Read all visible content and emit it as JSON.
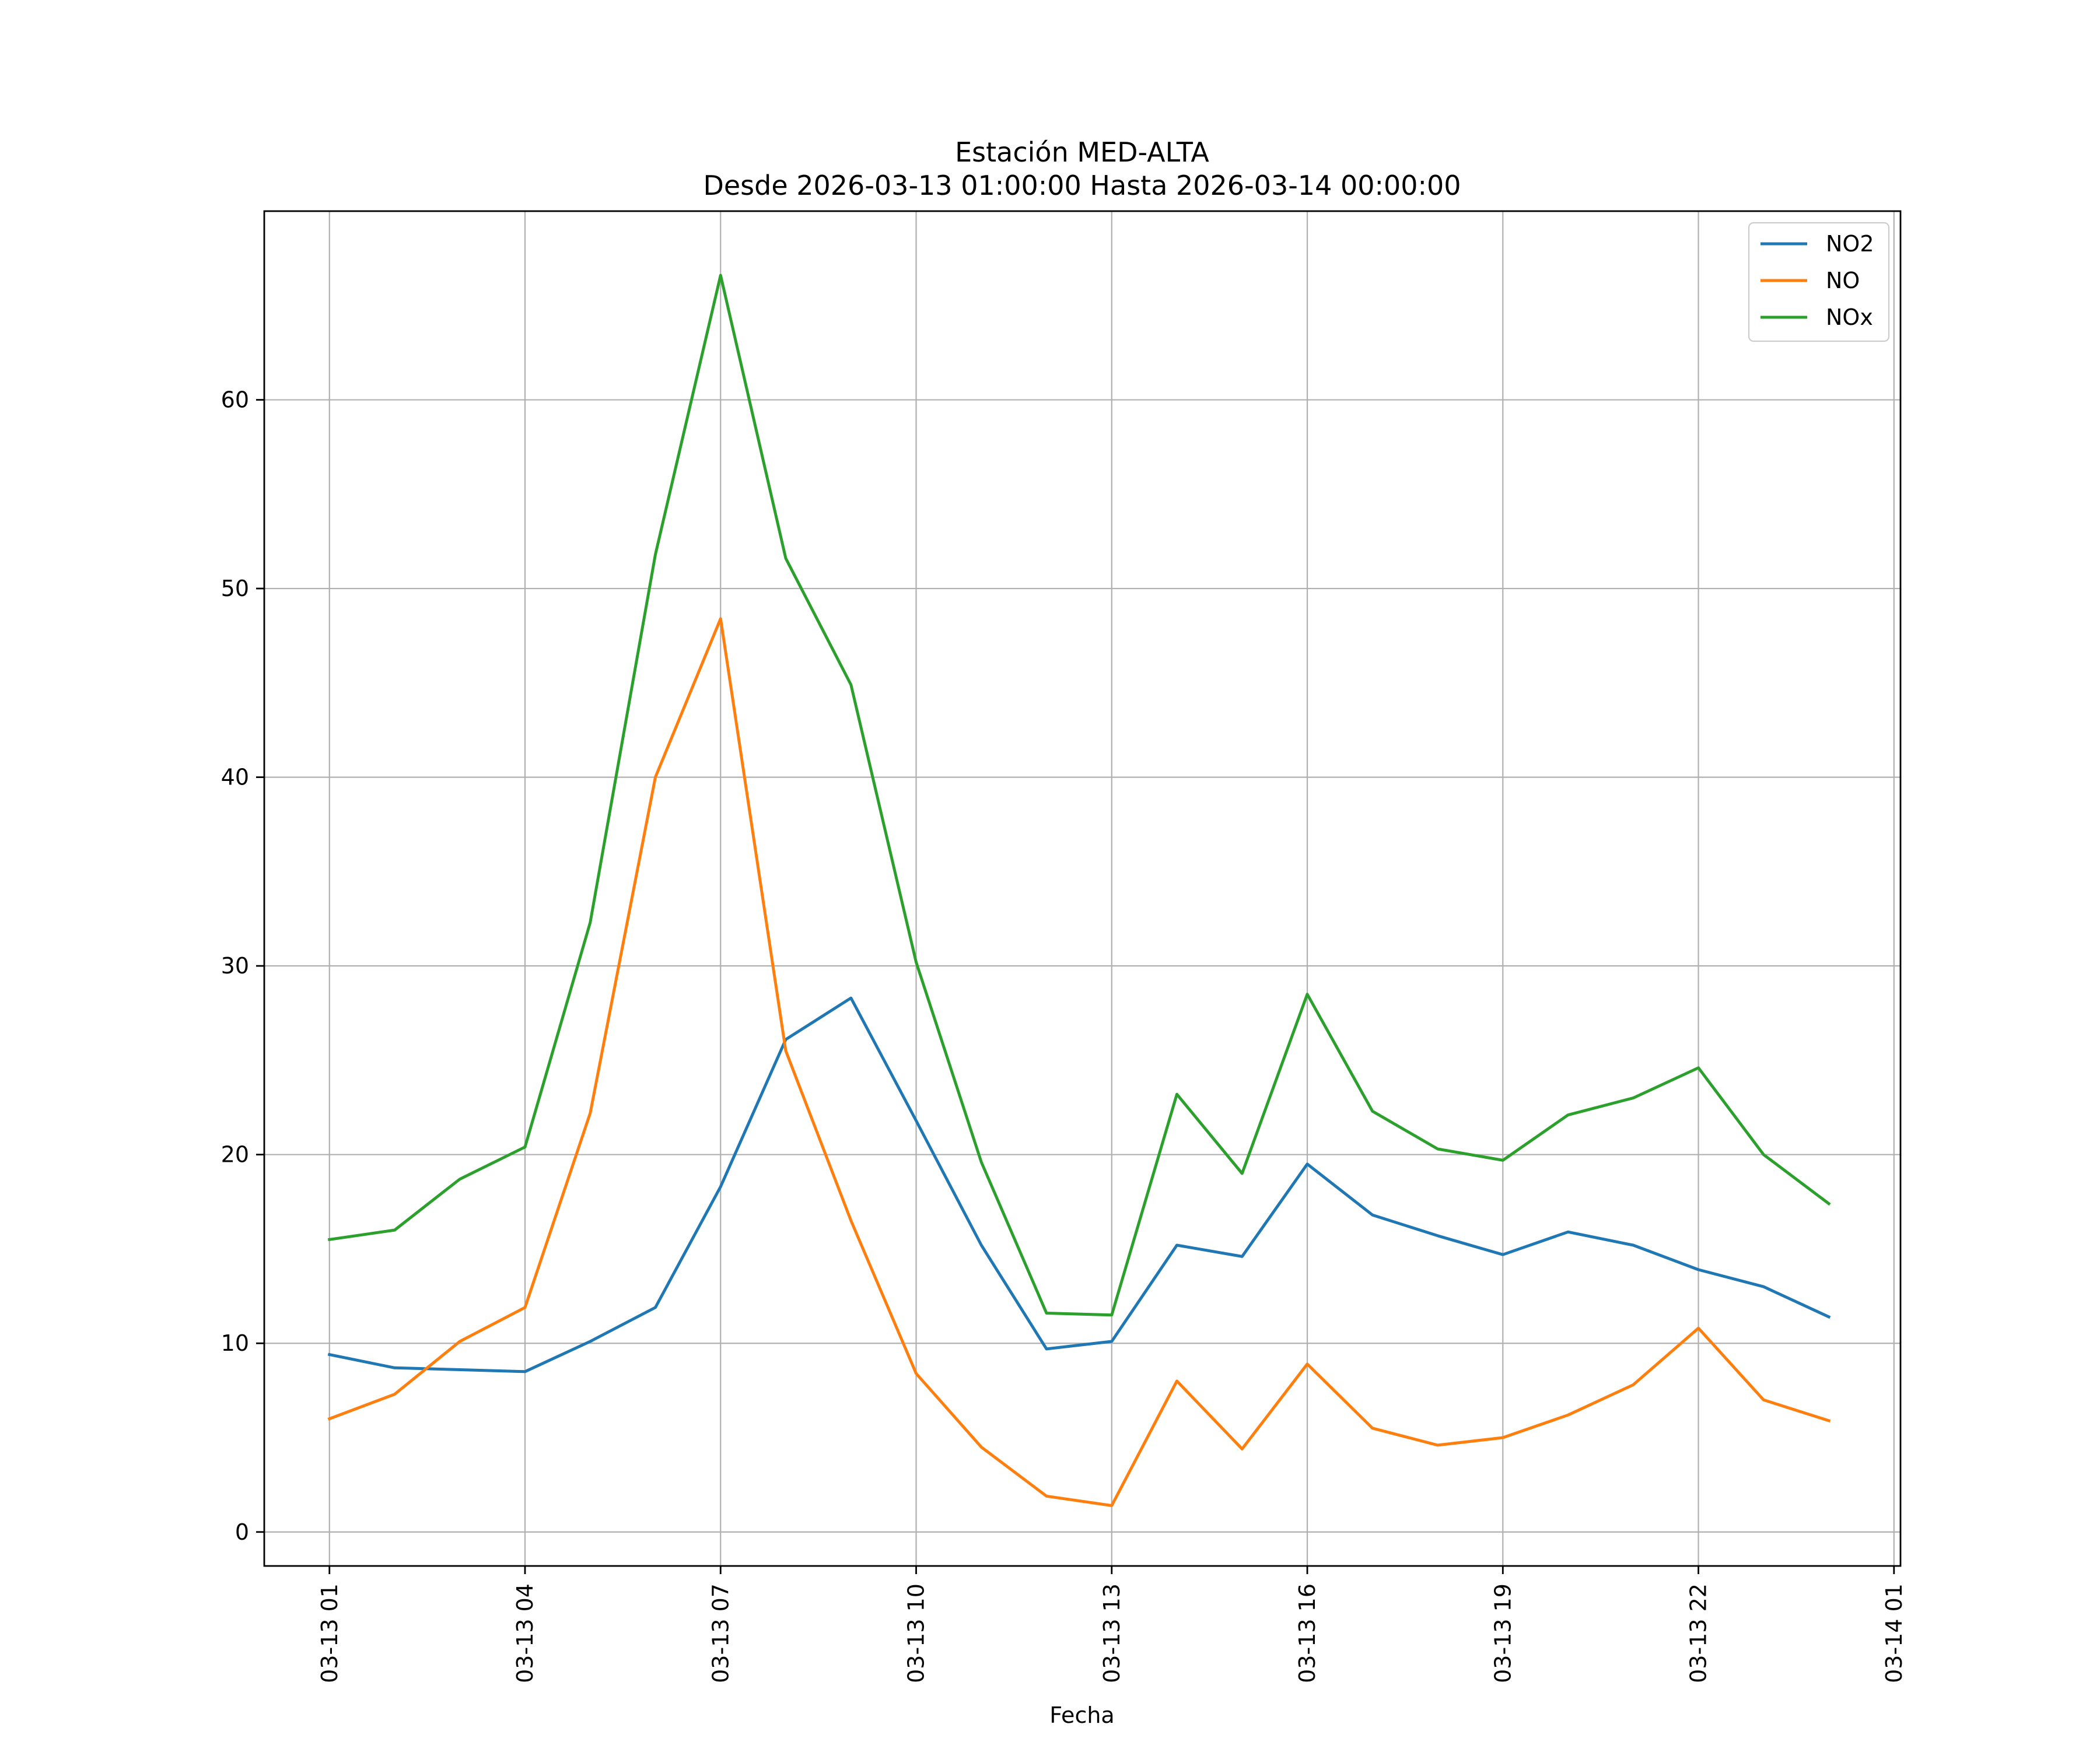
{
  "chart_data": {
    "type": "line",
    "title": "Estación MED-ALTA",
    "subtitle": "Desde 2026-03-13 01:00:00 Hasta 2026-03-14 00:00:00",
    "xlabel": "Fecha",
    "ylabel": "",
    "x": [
      "2026-03-13 01:00",
      "2026-03-13 02:00",
      "2026-03-13 03:00",
      "2026-03-13 04:00",
      "2026-03-13 05:00",
      "2026-03-13 06:00",
      "2026-03-13 07:00",
      "2026-03-13 08:00",
      "2026-03-13 09:00",
      "2026-03-13 10:00",
      "2026-03-13 11:00",
      "2026-03-13 12:00",
      "2026-03-13 13:00",
      "2026-03-13 14:00",
      "2026-03-13 15:00",
      "2026-03-13 16:00",
      "2026-03-13 17:00",
      "2026-03-13 18:00",
      "2026-03-13 19:00",
      "2026-03-13 20:00",
      "2026-03-13 21:00",
      "2026-03-13 22:00",
      "2026-03-13 23:00",
      "2026-03-14 00:00"
    ],
    "xlim": [
      "2026-03-13 00:00",
      "2026-03-14 01:06"
    ],
    "xticks": [
      {
        "value": "2026-03-13 01:00",
        "label": "03-13 01"
      },
      {
        "value": "2026-03-13 04:00",
        "label": "03-13 04"
      },
      {
        "value": "2026-03-13 07:00",
        "label": "03-13 07"
      },
      {
        "value": "2026-03-13 10:00",
        "label": "03-13 10"
      },
      {
        "value": "2026-03-13 13:00",
        "label": "03-13 13"
      },
      {
        "value": "2026-03-13 16:00",
        "label": "03-13 16"
      },
      {
        "value": "2026-03-13 19:00",
        "label": "03-13 19"
      },
      {
        "value": "2026-03-13 22:00",
        "label": "03-13 22"
      },
      {
        "value": "2026-03-14 01:00",
        "label": "03-14 01"
      }
    ],
    "ylim": [
      -1.8,
      70
    ],
    "yticks": [
      0,
      10,
      20,
      30,
      40,
      50,
      60
    ],
    "grid": true,
    "legend": "top-right",
    "series": [
      {
        "name": "NO2",
        "color": "#1f77b4",
        "values": [
          9.4,
          8.7,
          8.6,
          8.5,
          10.1,
          11.9,
          18.3,
          26.1,
          28.3,
          21.8,
          15.2,
          9.7,
          10.1,
          15.2,
          14.6,
          19.5,
          16.8,
          15.7,
          14.7,
          15.9,
          15.2,
          13.9,
          13.0,
          11.4
        ]
      },
      {
        "name": "NO",
        "color": "#ff7f0e",
        "values": [
          6.0,
          7.3,
          10.1,
          11.9,
          22.2,
          40.0,
          48.4,
          25.5,
          16.5,
          8.4,
          4.5,
          1.9,
          1.4,
          8.0,
          4.4,
          8.9,
          5.5,
          4.6,
          5.0,
          6.2,
          7.8,
          10.8,
          7.0,
          5.9
        ]
      },
      {
        "name": "NOx",
        "color": "#2ca02c",
        "values": [
          15.5,
          16.0,
          18.7,
          20.4,
          32.3,
          51.8,
          66.6,
          51.6,
          44.9,
          30.2,
          19.6,
          11.6,
          11.5,
          23.2,
          19.0,
          28.5,
          22.3,
          20.3,
          19.7,
          22.1,
          23.0,
          24.6,
          20.0,
          17.4
        ]
      }
    ]
  }
}
